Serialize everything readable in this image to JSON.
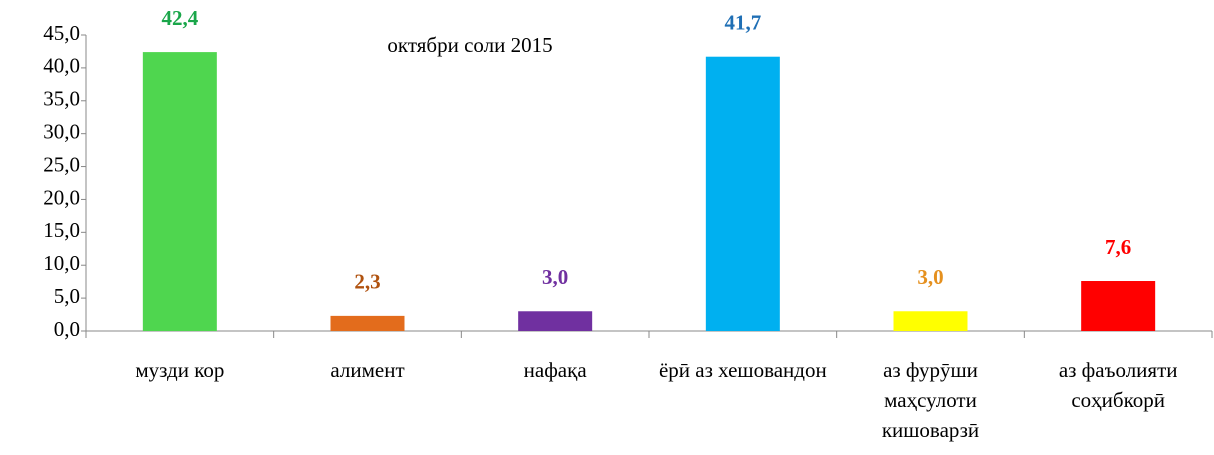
{
  "chart_data": {
    "type": "bar",
    "title": "октябри соли 2015",
    "categories": [
      "музди кор",
      "алимент",
      "нафақа",
      "ёрӣ аз хешовандон",
      "аз фурӯши маҳсулоти кишоварзӣ",
      "аз фаъолияти соҳибкорӣ"
    ],
    "values": [
      42.4,
      2.3,
      3.0,
      41.7,
      3.0,
      7.6
    ],
    "value_labels": [
      "42,4",
      "2,3",
      "3,0",
      "41,7",
      "3,0",
      "7,6"
    ],
    "colors": [
      "#4fd64f",
      "#e36c1c",
      "#7030a0",
      "#00b0f0",
      "#ffff00",
      "#ff0000"
    ],
    "label_colors": [
      "#1aa64a",
      "#b0520f",
      "#7030a0",
      "#1f6fb5",
      "#e5901e",
      "#ff0000"
    ],
    "ylim": [
      0,
      45
    ],
    "yticks": [
      {
        "value": 0,
        "label": "0,0"
      },
      {
        "value": 5,
        "label": "5,0"
      },
      {
        "value": 10,
        "label": "10,0"
      },
      {
        "value": 15,
        "label": "15,0"
      },
      {
        "value": 20,
        "label": "20,0"
      },
      {
        "value": 25,
        "label": "25,0"
      },
      {
        "value": 30,
        "label": "30,0"
      },
      {
        "value": 35,
        "label": "35,0"
      },
      {
        "value": 40,
        "label": "40,0"
      },
      {
        "value": 45,
        "label": "45,0"
      }
    ]
  }
}
